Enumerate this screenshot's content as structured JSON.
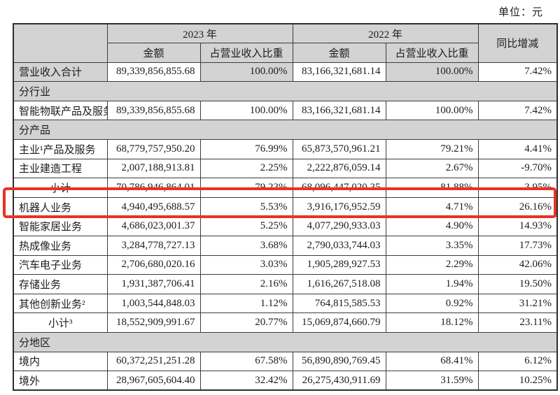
{
  "page": {
    "unit_label": "单位：元"
  },
  "colors": {
    "header_gray": "#d3d3d3",
    "highlight_red": "#e63327",
    "border_dark": "#3c3c3c"
  },
  "table": {
    "header": {
      "year_2023": "2023 年",
      "year_2022": "2022 年",
      "yoy": "同比增减",
      "amount_2023": "金额",
      "share_2023": "占营业收入比重",
      "amount_2022": "金额",
      "share_2022": "占营业收入比重"
    },
    "rows": [
      {
        "type": "data",
        "label": "营业收入合计",
        "align": "left",
        "cells": [
          "89,339,856,855.68",
          "100.00%",
          "83,166,321,681.14",
          "100.00%",
          "7.42%"
        ],
        "shaded": [
          0,
          2,
          4
        ]
      },
      {
        "type": "section",
        "label": "分行业"
      },
      {
        "type": "data",
        "label": "智能物联产品及服务",
        "align": "left",
        "cells": [
          "89,339,856,855.68",
          "100.00%",
          "83,166,321,681.14",
          "100.00%",
          "7.42%"
        ]
      },
      {
        "type": "section",
        "label": "分产品"
      },
      {
        "type": "data",
        "label": "主业¹产品及服务",
        "align": "left",
        "cells": [
          "68,779,757,950.20",
          "76.99%",
          "65,873,570,961.21",
          "79.21%",
          "4.41%"
        ]
      },
      {
        "type": "data",
        "label": "主业建造工程",
        "align": "left",
        "cells": [
          "2,007,188,913.81",
          "2.25%",
          "2,222,876,059.14",
          "2.67%",
          "-9.70%"
        ]
      },
      {
        "type": "data",
        "label": "小计",
        "align": "center",
        "cells": [
          "70,786,946,864.01",
          "79.23%",
          "68,096,447,020.35",
          "81.88%",
          "3.95%"
        ]
      },
      {
        "type": "data",
        "label": "机器人业务",
        "align": "left",
        "cells": [
          "4,940,495,688.57",
          "5.53%",
          "3,916,176,952.59",
          "4.71%",
          "26.16%"
        ],
        "highlighted": true
      },
      {
        "type": "data",
        "label": "智能家居业务",
        "align": "left",
        "cells": [
          "4,686,023,001.37",
          "5.25%",
          "4,077,290,933.03",
          "4.90%",
          "14.93%"
        ]
      },
      {
        "type": "data",
        "label": "热成像业务",
        "align": "left",
        "cells": [
          "3,284,778,727.13",
          "3.68%",
          "2,790,033,744.03",
          "3.35%",
          "17.73%"
        ]
      },
      {
        "type": "data",
        "label": "汽车电子业务",
        "align": "left",
        "cells": [
          "2,706,680,020.16",
          "3.03%",
          "1,905,289,927.53",
          "2.29%",
          "42.06%"
        ]
      },
      {
        "type": "data",
        "label": "存储业务",
        "align": "left",
        "cells": [
          "1,931,387,706.41",
          "2.16%",
          "1,616,267,518.08",
          "1.94%",
          "19.50%"
        ]
      },
      {
        "type": "data",
        "label": "其他创新业务²",
        "align": "left",
        "cells": [
          "1,003,544,848.03",
          "1.12%",
          "764,815,585.53",
          "0.92%",
          "31.21%"
        ]
      },
      {
        "type": "data",
        "label": "小计³",
        "align": "center",
        "cells": [
          "18,552,909,991.67",
          "20.77%",
          "15,069,874,660.79",
          "18.12%",
          "23.11%"
        ]
      },
      {
        "type": "section",
        "label": "分地区"
      },
      {
        "type": "data",
        "label": "境内",
        "align": "left",
        "cells": [
          "60,372,251,251.28",
          "67.58%",
          "56,890,890,769.45",
          "68.41%",
          "6.12%"
        ]
      },
      {
        "type": "data",
        "label": "境外",
        "align": "left",
        "cells": [
          "28,967,605,604.40",
          "32.42%",
          "26,275,430,911.69",
          "31.59%",
          "10.25%"
        ]
      }
    ]
  }
}
